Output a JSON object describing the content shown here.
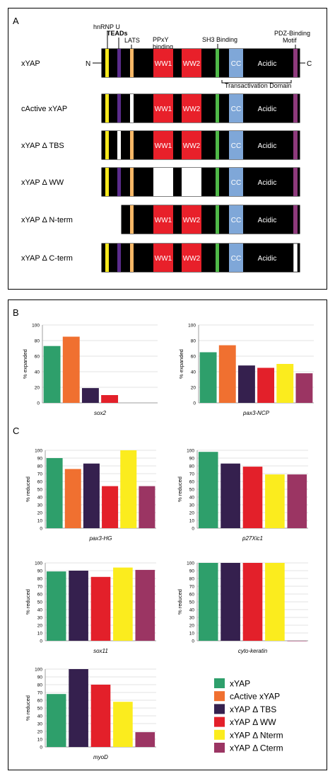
{
  "panel_a": {
    "letter": "A",
    "top_labels": {
      "hnrnp": "hnRNP U",
      "teads": "TEADs",
      "lats": "LATS",
      "ppxy_1": "PPxY",
      "ppxy_2": "binding",
      "sh3": "SH3 Binding",
      "pdz_1": "PDZ-Binding",
      "pdz_2": "Motif"
    },
    "n_term": "N",
    "c_term": "C",
    "transactivation": "Transactivation Domain",
    "domain_labels": {
      "ww1": "WW1",
      "ww2": "WW2",
      "cc": "CC",
      "acidic": "Acidic"
    },
    "constructs": [
      {
        "label": "xYAP"
      },
      {
        "label": "cActive xYAP"
      },
      {
        "label": "xYAP Δ TBS"
      },
      {
        "label": "xYAP Δ WW"
      },
      {
        "label": "xYAP Δ N-term"
      },
      {
        "label": "xYAP Δ C-term"
      }
    ],
    "colors": {
      "body": "#000000",
      "hnrnp": "#f5e81c",
      "tead": "#5b2c8c",
      "lats": "#f7b767",
      "ww": "#e8202a",
      "sh3": "#4fb848",
      "cc": "#7fa7d8",
      "pdz": "#8e3a7c",
      "deleted": "#ffffff"
    }
  },
  "panel_bc": {
    "letter_b": "B",
    "letter_c": "C",
    "series_colors": [
      "#2e9f6b",
      "#f07030",
      "#35204e",
      "#e3202a",
      "#fbec1e",
      "#9b3563"
    ]
  },
  "legend": {
    "items": [
      {
        "label": "xYAP",
        "color": "#2e9f6b"
      },
      {
        "label": "cActive xYAP",
        "color": "#f07030"
      },
      {
        "label": "xYAP Δ TBS",
        "color": "#35204e"
      },
      {
        "label": "xYAP Δ WW",
        "color": "#e3202a"
      },
      {
        "label": "xYAP Δ Nterm",
        "color": "#fbec1e"
      },
      {
        "label": "xYAP Δ Cterm",
        "color": "#9b3563"
      }
    ]
  },
  "chart_data": [
    {
      "type": "bar",
      "xlabel": "sox2",
      "ylabel": "% expanded",
      "ylim": [
        0,
        100
      ],
      "yticks": [
        0,
        20,
        40,
        60,
        80,
        100
      ],
      "grid": true,
      "series": [
        {
          "name": "xYAP",
          "value": 73
        },
        {
          "name": "cActive xYAP",
          "value": 85
        },
        {
          "name": "xYAP Δ TBS",
          "value": 19
        },
        {
          "name": "xYAP Δ WW",
          "value": 10
        }
      ]
    },
    {
      "type": "bar",
      "xlabel": "pax3-NCP",
      "ylabel": "% expanded",
      "ylim": [
        0,
        100
      ],
      "yticks": [
        0,
        20,
        40,
        60,
        80,
        100
      ],
      "grid": true,
      "series": [
        {
          "name": "xYAP",
          "value": 65
        },
        {
          "name": "cActive xYAP",
          "value": 74
        },
        {
          "name": "xYAP Δ TBS",
          "value": 48
        },
        {
          "name": "xYAP Δ WW",
          "value": 45
        },
        {
          "name": "xYAP Δ Nterm",
          "value": 50
        },
        {
          "name": "xYAP Δ Cterm",
          "value": 38
        }
      ]
    },
    {
      "type": "bar",
      "xlabel": "pax3-HG",
      "ylabel": "% reduced",
      "ylim": [
        0,
        100
      ],
      "yticks": [
        0,
        10,
        20,
        30,
        40,
        50,
        60,
        70,
        80,
        90,
        100
      ],
      "grid": true,
      "series": [
        {
          "name": "xYAP",
          "value": 90
        },
        {
          "name": "cActive xYAP",
          "value": 76
        },
        {
          "name": "xYAP Δ TBS",
          "value": 83
        },
        {
          "name": "xYAP Δ WW",
          "value": 54
        },
        {
          "name": "xYAP Δ Nterm",
          "value": 100
        },
        {
          "name": "xYAP Δ Cterm",
          "value": 54
        }
      ]
    },
    {
      "type": "bar",
      "xlabel": "p27Xic1",
      "ylabel": "% reduced",
      "ylim": [
        0,
        100
      ],
      "yticks": [
        0,
        10,
        20,
        30,
        40,
        50,
        60,
        70,
        80,
        90,
        100
      ],
      "grid": true,
      "series": [
        {
          "name": "xYAP",
          "value": 98
        },
        {
          "name": "xYAP Δ TBS",
          "value": 83
        },
        {
          "name": "xYAP Δ WW",
          "value": 79
        },
        {
          "name": "xYAP Δ Nterm",
          "value": 69
        },
        {
          "name": "xYAP Δ Cterm",
          "value": 69
        }
      ]
    },
    {
      "type": "bar",
      "xlabel": "sox11",
      "ylabel": "% reduced",
      "ylim": [
        0,
        100
      ],
      "yticks": [
        0,
        10,
        20,
        30,
        40,
        50,
        60,
        70,
        80,
        90,
        100
      ],
      "grid": true,
      "series": [
        {
          "name": "xYAP",
          "value": 89
        },
        {
          "name": "xYAP Δ TBS",
          "value": 90
        },
        {
          "name": "xYAP Δ WW",
          "value": 82
        },
        {
          "name": "xYAP Δ Nterm",
          "value": 94
        },
        {
          "name": "xYAP Δ Cterm",
          "value": 91
        }
      ]
    },
    {
      "type": "bar",
      "xlabel": "cyto-keratin",
      "ylabel": "% reduced",
      "ylim": [
        0,
        100
      ],
      "yticks": [
        0,
        10,
        20,
        30,
        40,
        50,
        60,
        70,
        80,
        90,
        100
      ],
      "grid": true,
      "series": [
        {
          "name": "xYAP",
          "value": 100
        },
        {
          "name": "xYAP Δ TBS",
          "value": 100
        },
        {
          "name": "xYAP Δ WW",
          "value": 100
        },
        {
          "name": "xYAP Δ Nterm",
          "value": 100
        },
        {
          "name": "xYAP Δ Cterm",
          "value": 0
        }
      ]
    },
    {
      "type": "bar",
      "xlabel": "myoD",
      "ylabel": "% reduced",
      "ylim": [
        0,
        100
      ],
      "yticks": [
        0,
        10,
        20,
        30,
        40,
        50,
        60,
        70,
        80,
        90,
        100
      ],
      "grid": true,
      "series": [
        {
          "name": "xYAP",
          "value": 68
        },
        {
          "name": "xYAP Δ TBS",
          "value": 100
        },
        {
          "name": "xYAP Δ WW",
          "value": 80
        },
        {
          "name": "xYAP Δ Nterm",
          "value": 58
        },
        {
          "name": "xYAP Δ Cterm",
          "value": 19
        }
      ]
    }
  ]
}
